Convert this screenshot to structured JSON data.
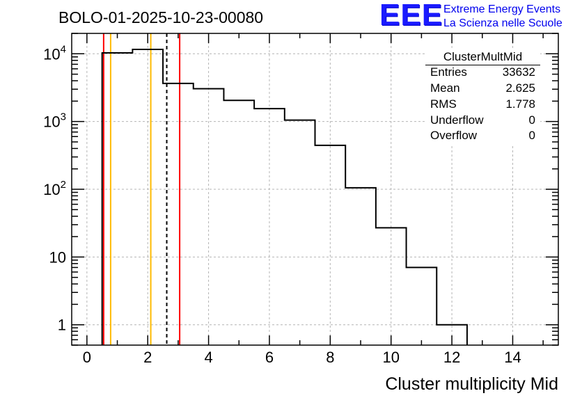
{
  "header": {
    "run_title": "BOLO-01-2025-10-23-00080"
  },
  "logo": {
    "mark": "EEE",
    "line1": "Extreme Energy Events",
    "line2": "La Scienza nelle Scuole",
    "color": "#0000ee"
  },
  "stats_box": {
    "title": "ClusterMultMid",
    "rows": [
      {
        "key": "Entries",
        "value": "33632"
      },
      {
        "key": "Mean",
        "value": "2.625"
      },
      {
        "key": "RMS",
        "value": "1.778"
      },
      {
        "key": "Underflow",
        "value": "0"
      },
      {
        "key": "Overflow",
        "value": "0"
      }
    ]
  },
  "chart_data": {
    "type": "bar",
    "title": "BOLO-01-2025-10-23-00080",
    "xlabel": "Cluster multiplicity Mid",
    "ylabel": "",
    "yscale": "log",
    "xlim": [
      -0.5,
      15.5
    ],
    "ylim": [
      0.5,
      20000
    ],
    "grid": true,
    "x_ticks": [
      0,
      2,
      4,
      6,
      8,
      10,
      12,
      14
    ],
    "x_tick_labels": [
      "0",
      "2",
      "4",
      "6",
      "8",
      "10",
      "12",
      "14"
    ],
    "y_ticks": [
      1,
      10,
      100,
      1000,
      10000
    ],
    "y_tick_labels": [
      {
        "base": "1",
        "exp": ""
      },
      {
        "base": "10",
        "exp": ""
      },
      {
        "base": "10",
        "exp": "2"
      },
      {
        "base": "10",
        "exp": "3"
      },
      {
        "base": "10",
        "exp": "4"
      }
    ],
    "bins": [
      {
        "low": 0.5,
        "high": 1.5,
        "value": 10300
      },
      {
        "low": 1.5,
        "high": 2.5,
        "value": 11600
      },
      {
        "low": 2.5,
        "high": 3.5,
        "value": 3650
      },
      {
        "low": 3.5,
        "high": 4.5,
        "value": 3050
      },
      {
        "low": 4.5,
        "high": 5.5,
        "value": 2050
      },
      {
        "low": 5.5,
        "high": 6.5,
        "value": 1550
      },
      {
        "low": 6.5,
        "high": 7.5,
        "value": 1050
      },
      {
        "low": 7.5,
        "high": 8.5,
        "value": 445
      },
      {
        "low": 8.5,
        "high": 9.5,
        "value": 105
      },
      {
        "low": 9.5,
        "high": 10.5,
        "value": 27
      },
      {
        "low": 10.5,
        "high": 11.5,
        "value": 7
      },
      {
        "low": 11.5,
        "high": 12.5,
        "value": 1
      }
    ],
    "vertical_lines": [
      {
        "name": "red-line-left",
        "x": 0.55,
        "color": "#ff0000",
        "style": "solid"
      },
      {
        "name": "orange-line-left",
        "x": 0.78,
        "color": "#ffbb00",
        "style": "solid"
      },
      {
        "name": "orange-line-right",
        "x": 2.1,
        "color": "#ffbb00",
        "style": "solid"
      },
      {
        "name": "mean-line",
        "x": 2.625,
        "color": "#000000",
        "style": "dashed"
      },
      {
        "name": "red-line-right",
        "x": 3.05,
        "color": "#ff0000",
        "style": "solid"
      }
    ]
  }
}
